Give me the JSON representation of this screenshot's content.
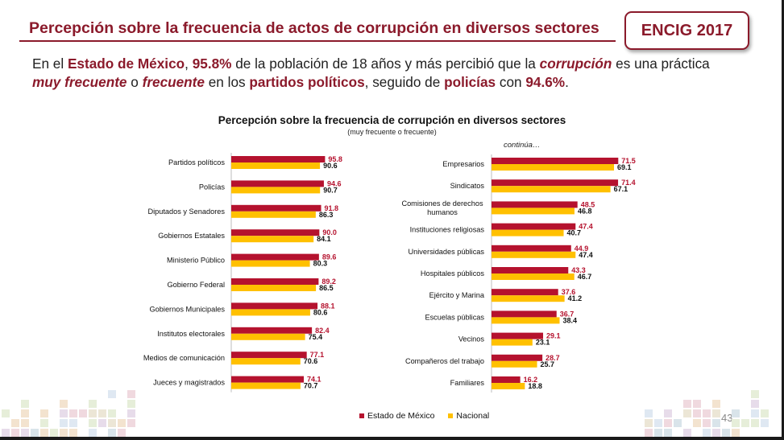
{
  "header": {
    "title": "Percepción sobre la frecuencia de actos de corrupción en diversos sectores"
  },
  "badge": {
    "label": "ENCIG 2017"
  },
  "intro": {
    "t1": "En el ",
    "t2": "Estado de México",
    "t3": ", ",
    "t4": "95.8%",
    "t5": " de la población de 18 años y más percibió que la ",
    "t6": "corrupción",
    "t7": " es una práctica ",
    "t8": "muy frecuente",
    "t9": " o ",
    "t10": "frecuente",
    "t11": " en los ",
    "t12": "partidos políticos",
    "t13": ", seguido de ",
    "t14": "policías",
    "t15": " con ",
    "t16": "94.6%",
    "t17": "."
  },
  "colors": {
    "accent": "#8b1a2b",
    "estado": "#b5122e",
    "nacional": "#ffc000"
  },
  "chart_data": {
    "type": "bar",
    "orientation": "horizontal",
    "title": "Percepción sobre la frecuencia de corrupción en diversos sectores",
    "subtitle": "(muy frecuente o frecuente)",
    "continued_label": "continúa…",
    "series_names": [
      "Estado de México",
      "Nacional"
    ],
    "panels": [
      {
        "categories": [
          [
            "Partidos políticos"
          ],
          [
            "Policías"
          ],
          [
            "Diputados y Senadores"
          ],
          [
            "Gobiernos Estatales"
          ],
          [
            "Ministerio Público"
          ],
          [
            "Gobierno Federal"
          ],
          [
            "Gobiernos Municipales"
          ],
          [
            "Institutos electorales"
          ],
          [
            "Medios de comunicación"
          ],
          [
            "Jueces y magistrados"
          ]
        ],
        "estado": [
          95.8,
          94.6,
          91.8,
          90.0,
          89.6,
          89.2,
          88.1,
          82.4,
          77.1,
          74.1
        ],
        "nacional": [
          90.6,
          90.7,
          86.3,
          84.1,
          80.3,
          86.5,
          80.6,
          75.4,
          70.6,
          70.7
        ],
        "estado_labels": [
          "95.8",
          "94.6",
          "91.8",
          "90.0",
          "89.6",
          "89.2",
          "88.1",
          "82.4",
          "77.1",
          "74.1"
        ],
        "nacional_labels": [
          "90.6",
          "90.7",
          "86.3",
          "84.1",
          "80.3",
          "86.5",
          "80.6",
          "75.4",
          "70.6",
          "70.7"
        ]
      },
      {
        "categories": [
          [
            "Empresarios"
          ],
          [
            "Sindicatos"
          ],
          [
            "Comisiones de derechos",
            "humanos"
          ],
          [
            "Instituciones religiosas"
          ],
          [
            "Universidades públicas"
          ],
          [
            "Hospitales públicos"
          ],
          [
            "Ejército y Marina"
          ],
          [
            "Escuelas públicas"
          ],
          [
            "Vecinos"
          ],
          [
            "Compañeros del trabajo"
          ],
          [
            "Familiares"
          ]
        ],
        "estado": [
          71.5,
          71.4,
          48.5,
          47.4,
          44.9,
          43.3,
          37.6,
          36.7,
          29.1,
          28.7,
          16.2
        ],
        "nacional": [
          69.1,
          67.1,
          46.8,
          40.7,
          47.4,
          46.7,
          41.2,
          38.4,
          23.1,
          25.7,
          18.8
        ],
        "estado_labels": [
          "71.5",
          "71.4",
          "48.5",
          "47.4",
          "44.9",
          "43.3",
          "37.6",
          "36.7",
          "29.1",
          "28.7",
          "16.2"
        ],
        "nacional_labels": [
          "69.1",
          "67.1",
          "46.8",
          "40.7",
          "47.4",
          "46.7",
          "41.2",
          "38.4",
          "23.1",
          "25.7",
          "18.8"
        ]
      }
    ]
  },
  "legend": {
    "estado": "Estado de México",
    "nacional": "Nacional"
  },
  "footer": {
    "page_number": "43"
  }
}
